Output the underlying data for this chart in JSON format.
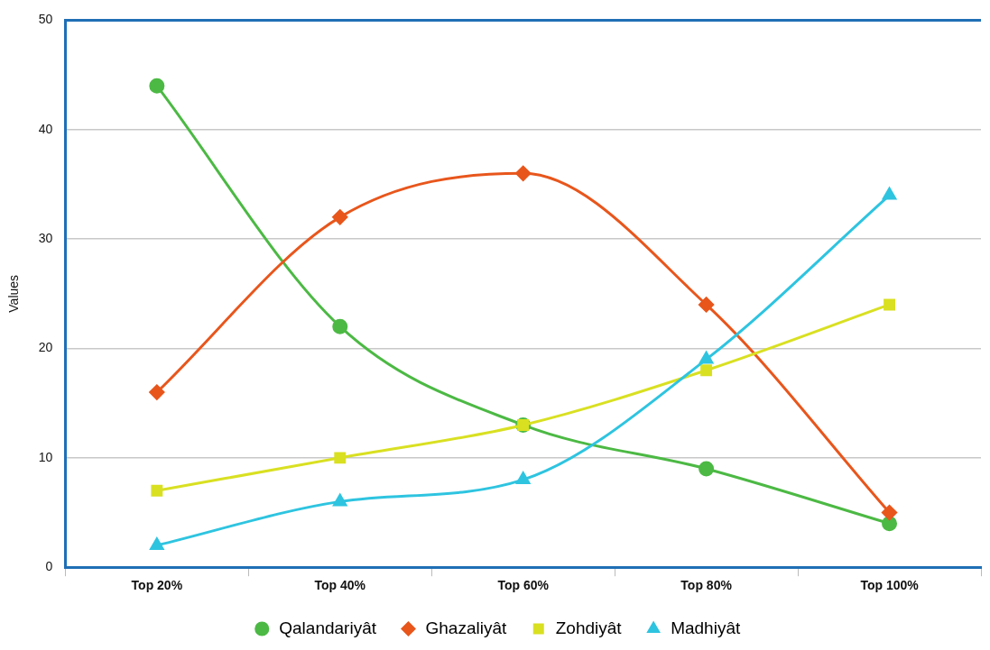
{
  "chart_data": {
    "type": "line",
    "ylabel": "Values",
    "categories": [
      "Top 20%",
      "Top 40%",
      "Top 60%",
      "Top 80%",
      "Top 100%"
    ],
    "series": [
      {
        "name": "Qalandariyât",
        "color": "#4cb944",
        "marker": "circle",
        "values": [
          44,
          22,
          13,
          9,
          4
        ]
      },
      {
        "name": "Ghazaliyât",
        "color": "#e8561c",
        "marker": "diamond",
        "values": [
          16,
          32,
          36,
          24,
          5
        ]
      },
      {
        "name": "Zohdiyât",
        "color": "#d9e021",
        "marker": "square",
        "values": [
          7,
          10,
          13,
          18,
          24
        ]
      },
      {
        "name": "Madhiyât",
        "color": "#2ec4e0",
        "marker": "triangle",
        "values": [
          2,
          6,
          8,
          19,
          34
        ]
      }
    ],
    "ylim": [
      0,
      50
    ],
    "yticks": [
      0,
      10,
      20,
      30,
      40,
      50
    ],
    "grid": "y",
    "legend": "bottom",
    "line_style": "solid"
  }
}
